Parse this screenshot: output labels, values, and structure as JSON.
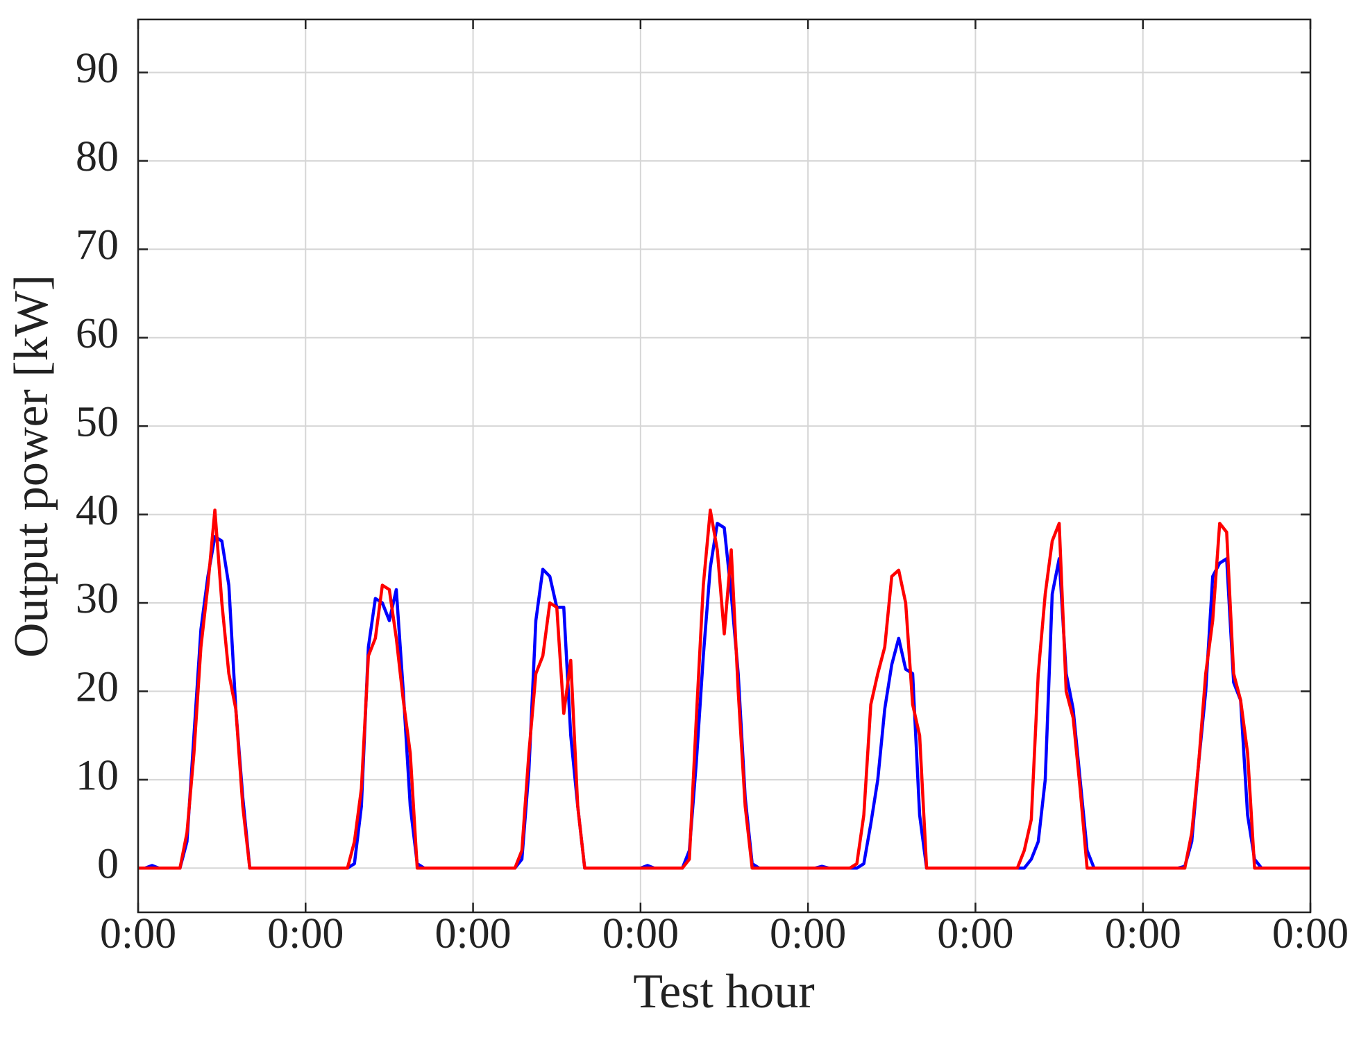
{
  "chart_data": {
    "type": "line",
    "xlabel": "Test hour",
    "ylabel": "Output power [kW]",
    "x": [
      0,
      1,
      2,
      3,
      4,
      5,
      6,
      7,
      8,
      9,
      10,
      11,
      12,
      13,
      14,
      15,
      16,
      17,
      18,
      19,
      20,
      21,
      22,
      23,
      24,
      25,
      26,
      27,
      28,
      29,
      30,
      31,
      32,
      33,
      34,
      35,
      36,
      37,
      38,
      39,
      40,
      41,
      42,
      43,
      44,
      45,
      46,
      47,
      48,
      49,
      50,
      51,
      52,
      53,
      54,
      55,
      56,
      57,
      58,
      59,
      60,
      61,
      62,
      63,
      64,
      65,
      66,
      67,
      68,
      69,
      70,
      71,
      72,
      73,
      74,
      75,
      76,
      77,
      78,
      79,
      80,
      81,
      82,
      83,
      84,
      85,
      86,
      87,
      88,
      89,
      90,
      91,
      92,
      93,
      94,
      95,
      96,
      97,
      98,
      99,
      100,
      101,
      102,
      103,
      104,
      105,
      106,
      107,
      108,
      109,
      110,
      111,
      112,
      113,
      114,
      115,
      116,
      117,
      118,
      119,
      120,
      121,
      122,
      123,
      124,
      125,
      126,
      127,
      128,
      129,
      130,
      131,
      132,
      133,
      134,
      135,
      136,
      137,
      138,
      139,
      140,
      141,
      142,
      143,
      144,
      145,
      146,
      147,
      148,
      149,
      150,
      151,
      152,
      153,
      154,
      155,
      156,
      157,
      158,
      159,
      160,
      161,
      162,
      163,
      164,
      165,
      166,
      167,
      168
    ],
    "series": [
      {
        "color": "#0000ff",
        "values": [
          0,
          0,
          0.3,
          0,
          0,
          0,
          0,
          3,
          15,
          27,
          33,
          37.5,
          37,
          32,
          18,
          8,
          0,
          0,
          0,
          0,
          0,
          0,
          0,
          0,
          0,
          0,
          0,
          0,
          0,
          0,
          0,
          0.5,
          7,
          25,
          30.5,
          30,
          28,
          31.5,
          20,
          7,
          0.5,
          0,
          0,
          0,
          0,
          0,
          0,
          0,
          0,
          0,
          0,
          0,
          0,
          0,
          0,
          1,
          11,
          28,
          33.8,
          33,
          29.5,
          29.5,
          15,
          7,
          0,
          0,
          0,
          0,
          0,
          0,
          0,
          0,
          0,
          0.3,
          0,
          0,
          0,
          0,
          0,
          2,
          12,
          24,
          34,
          39,
          38.5,
          31,
          22,
          8,
          0.5,
          0,
          0,
          0,
          0,
          0,
          0,
          0,
          0,
          0,
          0.2,
          0,
          0,
          0,
          0,
          0,
          0.5,
          5,
          10,
          18,
          23,
          26,
          22.5,
          22,
          6,
          0,
          0,
          0,
          0,
          0,
          0,
          0,
          0,
          0,
          0,
          0,
          0,
          0,
          0,
          0,
          1,
          3,
          10,
          31,
          35,
          22,
          18,
          10,
          2,
          0,
          0,
          0,
          0,
          0,
          0,
          0,
          0,
          0,
          0,
          0,
          0,
          0,
          0.2,
          3,
          12,
          20,
          33,
          34.5,
          35,
          21,
          19,
          6,
          1,
          0,
          0,
          0,
          0,
          0,
          0,
          0,
          0
        ]
      },
      {
        "color": "#ff0000",
        "values": [
          0,
          0,
          0,
          0,
          0,
          0,
          0,
          4,
          13,
          25,
          32,
          40.5,
          30,
          22,
          18,
          7,
          0,
          0,
          0,
          0,
          0,
          0,
          0,
          0,
          0,
          0,
          0,
          0,
          0,
          0,
          0,
          3,
          9,
          24,
          26,
          32,
          31.5,
          26,
          19,
          13,
          0,
          0,
          0,
          0,
          0,
          0,
          0,
          0,
          0,
          0,
          0,
          0,
          0,
          0,
          0,
          2,
          13,
          22,
          24,
          30,
          29.5,
          17.5,
          23.5,
          7,
          0,
          0,
          0,
          0,
          0,
          0,
          0,
          0,
          0,
          0,
          0,
          0,
          0,
          0,
          0,
          1,
          17,
          32,
          40.5,
          36,
          26.5,
          36,
          20,
          7,
          0,
          0,
          0,
          0,
          0,
          0,
          0,
          0,
          0,
          0,
          0,
          0,
          0,
          0,
          0,
          0.5,
          6,
          18.5,
          22,
          25,
          33,
          33.7,
          30,
          18.5,
          15,
          0,
          0,
          0,
          0,
          0,
          0,
          0,
          0,
          0,
          0,
          0,
          0,
          0,
          0,
          2,
          5.5,
          22,
          31,
          37,
          39,
          20,
          17,
          9,
          0,
          0,
          0,
          0,
          0,
          0,
          0,
          0,
          0,
          0,
          0,
          0,
          0,
          0,
          0,
          4,
          12,
          22,
          28,
          39,
          38,
          22,
          19,
          13,
          0,
          0,
          0,
          0,
          0,
          0,
          0,
          0,
          0
        ]
      }
    ],
    "xlim": [
      0,
      168
    ],
    "ylim": [
      -5,
      96
    ],
    "xticks": [
      {
        "value": 0,
        "label": "0:00"
      },
      {
        "value": 24,
        "label": "0:00"
      },
      {
        "value": 48,
        "label": "0:00"
      },
      {
        "value": 72,
        "label": "0:00"
      },
      {
        "value": 96,
        "label": "0:00"
      },
      {
        "value": 120,
        "label": "0:00"
      },
      {
        "value": 144,
        "label": "0:00"
      },
      {
        "value": 168,
        "label": "0:00"
      }
    ],
    "yticks": [
      0,
      10,
      20,
      30,
      40,
      50,
      60,
      70,
      80,
      90
    ],
    "grid": true
  }
}
